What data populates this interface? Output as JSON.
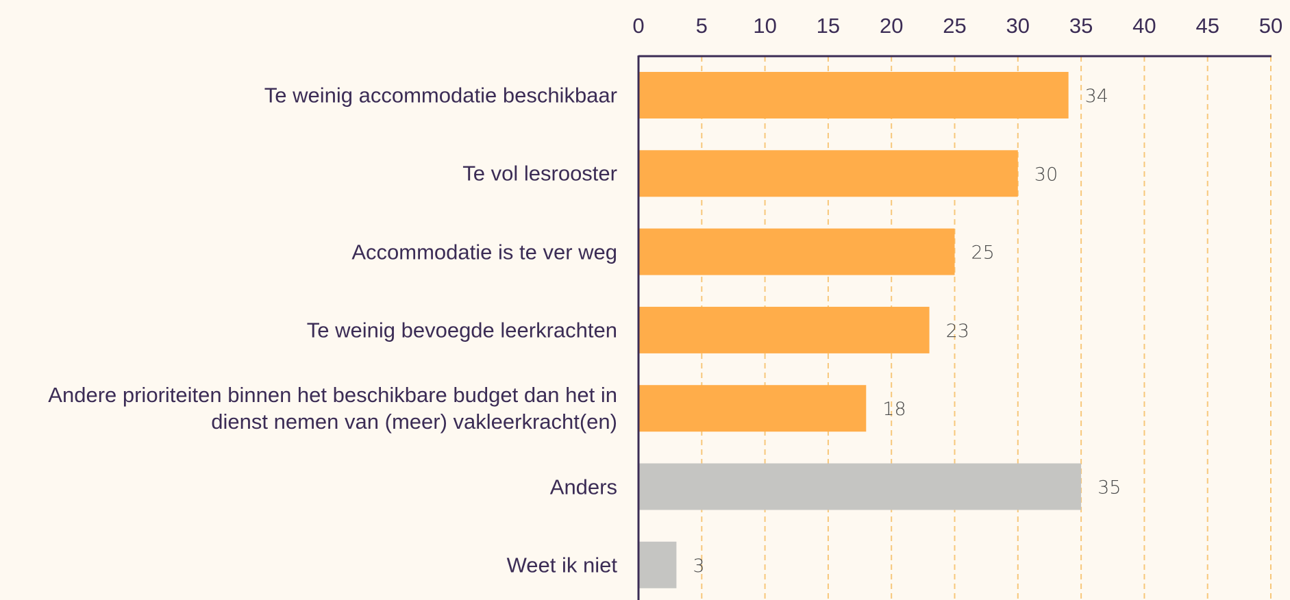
{
  "chart_data": {
    "type": "bar",
    "orientation": "horizontal",
    "categories": [
      "Te weinig accommodatie beschikbaar",
      "Te vol lesrooster",
      "Accommodatie is te ver weg",
      "Te weinig bevoegde leerkrachten",
      "Andere prioriteiten binnen het beschikbare budget dan het in\ndienst nemen van (meer) vakleerkracht(en)",
      "Anders",
      "Weet ik niet"
    ],
    "values": [
      34,
      30,
      25,
      23,
      18,
      35,
      3
    ],
    "value_labels": [
      "34",
      "30",
      "25",
      "23",
      "18",
      "35",
      "3"
    ],
    "bar_colors": [
      "#ffad4a",
      "#ffad4a",
      "#ffad4a",
      "#ffad4a",
      "#ffad4a",
      "#c5c5c2",
      "#c5c5c2"
    ],
    "xlim": [
      0,
      50
    ],
    "xticks": [
      0,
      5,
      10,
      15,
      20,
      25,
      30,
      35,
      40,
      45,
      50
    ],
    "xtick_labels": [
      "0",
      "5",
      "10",
      "15",
      "20",
      "25",
      "30",
      "35",
      "40",
      "45",
      "50"
    ],
    "x_axis_position": "top",
    "grid": true,
    "grid_style": "dashed",
    "colors": {
      "background": "#fef9f1",
      "axis": "#3b2c55",
      "grid": "#f7c77a",
      "text": "#3b2c55",
      "value_label": "#4a4a4a"
    },
    "title": "",
    "xlabel": "",
    "ylabel": ""
  }
}
